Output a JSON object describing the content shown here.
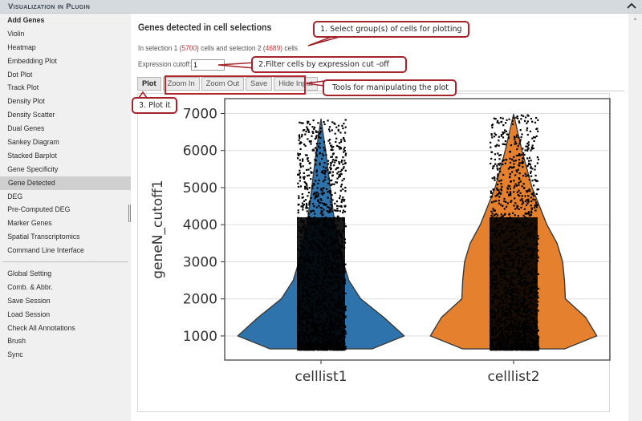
{
  "header": {
    "title": "Visualization in Plugin",
    "collapse_icon": "chevron-up-icon"
  },
  "sidebar": {
    "items": [
      {
        "label": "Add Genes",
        "bold": true
      },
      {
        "label": "Violin"
      },
      {
        "label": "Heatmap"
      },
      {
        "label": "Embedding Plot"
      },
      {
        "label": "Dot Plot"
      },
      {
        "label": "Track Plot"
      },
      {
        "label": "Density Plot"
      },
      {
        "label": "Density Scatter"
      },
      {
        "label": "Dual Genes"
      },
      {
        "label": "Sankey Diagram"
      },
      {
        "label": "Stacked Barplot"
      },
      {
        "label": "Gene Specificity"
      },
      {
        "label": "Gene Detected",
        "active": true
      },
      {
        "label": "DEG"
      },
      {
        "label": "Pre-Computed DEG"
      },
      {
        "label": "Marker Genes"
      },
      {
        "label": "Spatial Transcriptomics"
      },
      {
        "label": "Command Line Interface"
      }
    ],
    "settings_items": [
      {
        "label": "Global Setting"
      },
      {
        "label": "Comb. & Abbr."
      },
      {
        "label": "Save Session"
      },
      {
        "label": "Load Session"
      },
      {
        "label": "Check All Annotations"
      },
      {
        "label": "Brush"
      },
      {
        "label": "Sync"
      }
    ]
  },
  "main": {
    "title": "Genes detected in cell selections",
    "selection_info": {
      "prefix": "In selection 1 (",
      "count1": "5700",
      "middle": ") cells and selection 2 (",
      "count2": "4689",
      "suffix": ") cells"
    },
    "cutoff": {
      "label": "Expression cutoff:",
      "value": "1"
    },
    "toolbar": {
      "plot": "Plot",
      "zoom_in": "Zoom In",
      "zoom_out": "Zoom Out",
      "save": "Save",
      "hide_input": "Hide Input"
    }
  },
  "annotations": {
    "step1": "1. Select group(s) of cells for plotting",
    "step2": "2.Filter cells by expression cut -off",
    "tools": "Tools for manipulating the plot",
    "step3": "3. Plot it",
    "color": "#a5232a"
  },
  "chart_data": {
    "type": "violin",
    "title": "",
    "xlabel": "",
    "ylabel": "geneN_cutoff1",
    "categories": [
      "celllist1",
      "celllist2"
    ],
    "yticks": [
      1000,
      2000,
      3000,
      4000,
      5000,
      6000,
      7000
    ],
    "ylim": [
      350,
      7400
    ],
    "grid": "horizontal",
    "series": [
      {
        "name": "celllist1",
        "color": "#2f73ad",
        "min": 650,
        "max": 6850,
        "mode": 1000,
        "n_cells": 5700,
        "half_width_profile": [
          [
            650,
            0.55
          ],
          [
            1000,
            0.9
          ],
          [
            1500,
            0.68
          ],
          [
            2000,
            0.43
          ],
          [
            2500,
            0.3
          ],
          [
            3000,
            0.24
          ],
          [
            3500,
            0.2
          ],
          [
            4000,
            0.15
          ],
          [
            5000,
            0.1
          ],
          [
            6000,
            0.05
          ],
          [
            6850,
            0.0
          ]
        ]
      },
      {
        "name": "celllist2",
        "color": "#e5812e",
        "min": 650,
        "max": 6980,
        "mode": 1000,
        "n_cells": 4689,
        "half_width_profile": [
          [
            650,
            0.55
          ],
          [
            1000,
            0.9
          ],
          [
            1500,
            0.78
          ],
          [
            2000,
            0.56
          ],
          [
            2500,
            0.55
          ],
          [
            3000,
            0.53
          ],
          [
            3500,
            0.47
          ],
          [
            4000,
            0.36
          ],
          [
            5000,
            0.2
          ],
          [
            6000,
            0.09
          ],
          [
            6980,
            0.0
          ]
        ]
      }
    ],
    "points_overlay": "jittered black dots (strip plot)",
    "colors": {
      "series1": "#2f73ad",
      "series2": "#e5812e",
      "points": "#000000",
      "grid": "#dddddd"
    }
  }
}
